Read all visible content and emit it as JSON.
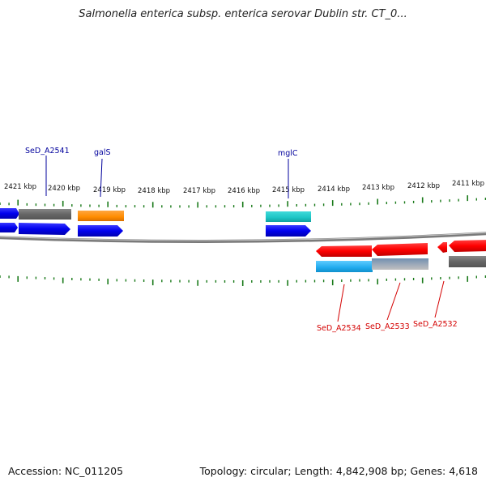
{
  "title": "Salmonella enterica subsp. enterica serovar Dublin str. CT_0...",
  "footer": {
    "accession": "Accession: NC_011205",
    "summary": "Topology: circular; Length: 4,842,908 bp; Genes: 4,618"
  },
  "ruler": {
    "labels": [
      "2421 kbp",
      "2420 kbp",
      "2419 kbp",
      "2418 kbp",
      "2417 kbp",
      "2416 kbp",
      "2415 kbp",
      "2414 kbp",
      "2413 kbp",
      "2412 kbp",
      "2411 kbp"
    ]
  },
  "gene_labels_top": [
    "SeD_A2541",
    "galS",
    "mglC"
  ],
  "gene_labels_bottom": [
    "SeD_A2534",
    "SeD_A2533",
    "SeD_A2532"
  ],
  "colors": {
    "forward_label": "#00009c",
    "reverse_label": "#d40000",
    "tick": "#1a7a1a",
    "backbone": "#808080"
  }
}
